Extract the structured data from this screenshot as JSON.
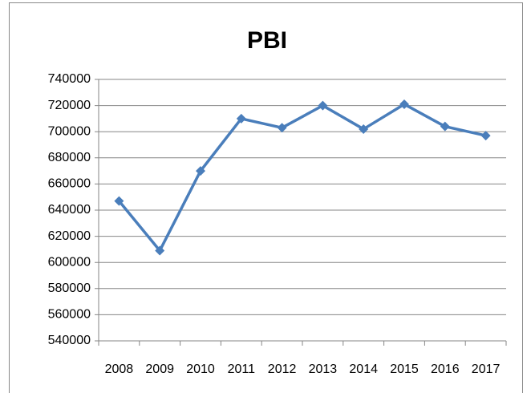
{
  "chart_data": {
    "type": "line",
    "title": "PBI",
    "categories": [
      "2008",
      "2009",
      "2010",
      "2011",
      "2012",
      "2013",
      "2014",
      "2015",
      "2016",
      "2017"
    ],
    "series": [
      {
        "name": "PBI",
        "color": "#4a7ebb",
        "values": [
          647000,
          609000,
          670000,
          710000,
          703000,
          720000,
          702000,
          721000,
          704000,
          697000
        ]
      }
    ],
    "ylim": [
      540000,
      740000
    ],
    "yticks": [
      540000,
      560000,
      580000,
      600000,
      620000,
      640000,
      660000,
      680000,
      700000,
      720000,
      740000
    ],
    "grid": true,
    "legend": false
  }
}
